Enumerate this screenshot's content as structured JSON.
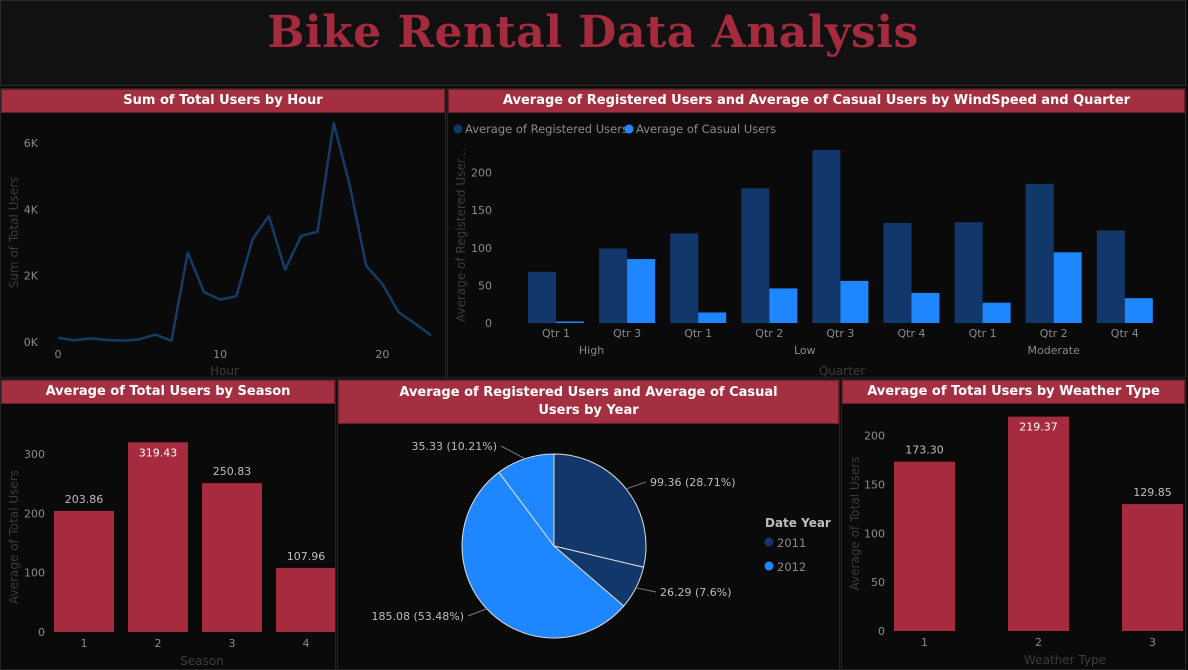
{
  "header": {
    "title": "Bike Rental Data Analysis"
  },
  "colors": {
    "accent": "#a42f40",
    "bar_red": "#a62b3f",
    "dark_blue": "#12386b",
    "light_blue": "#1e86ff",
    "line_blue": "#163b66"
  },
  "chart_data": [
    {
      "id": "hour",
      "type": "line",
      "title": "Sum of Total Users by Hour",
      "xlabel": "Hour",
      "ylabel": "Sum of Total Users",
      "x": [
        0,
        1,
        2,
        3,
        4,
        5,
        6,
        7,
        8,
        9,
        10,
        11,
        12,
        13,
        14,
        15,
        16,
        17,
        18,
        19,
        20,
        21,
        22,
        23
      ],
      "values": [
        130,
        50,
        110,
        60,
        40,
        80,
        220,
        40,
        2700,
        1500,
        1280,
        1380,
        3100,
        3800,
        2180,
        3200,
        3320,
        6600,
        4700,
        2300,
        1750,
        900,
        560,
        200
      ],
      "xticks": [
        "0",
        "10",
        "20"
      ],
      "yticks": [
        "0K",
        "2K",
        "4K",
        "6K"
      ],
      "xlim": [
        0,
        23
      ],
      "ylim": [
        0,
        6600
      ]
    },
    {
      "id": "wind",
      "type": "bar",
      "title": "Average of Registered Users and Average of Casual Users by WindSpeed and Quarter",
      "xlabel": "Quarter",
      "ylabel": "Average of Registered User...",
      "categories": [
        "Qtr 1",
        "Qtr 3",
        "Qtr 1",
        "Qtr 2",
        "Qtr 3",
        "Qtr 4",
        "Qtr 1",
        "Qtr 2",
        "Qtr 4"
      ],
      "groups": [
        {
          "label": "High",
          "span": [
            0,
            1
          ]
        },
        {
          "label": "Low",
          "span": [
            2,
            5
          ]
        },
        {
          "label": "Moderate",
          "span": [
            6,
            8
          ]
        }
      ],
      "series": [
        {
          "name": "Average of Registered Users",
          "values": [
            68,
            99,
            119,
            179,
            230,
            133,
            134,
            185,
            123
          ]
        },
        {
          "name": "Average of Casual Users",
          "values": [
            2,
            85,
            14,
            46,
            56,
            40,
            27,
            94,
            33
          ]
        }
      ],
      "yticks": [
        "0",
        "50",
        "100",
        "150",
        "200"
      ],
      "ylim": [
        0,
        235
      ]
    },
    {
      "id": "season",
      "type": "bar",
      "title": "Average of Total Users by Season",
      "xlabel": "Season",
      "ylabel": "Average of Total Users",
      "categories": [
        "1",
        "2",
        "3",
        "4"
      ],
      "values": [
        203.86,
        319.43,
        250.83,
        107.96
      ],
      "labels": [
        "203.86",
        "319.43",
        "250.83",
        "107.96"
      ],
      "yticks": [
        "0",
        "100",
        "200",
        "300"
      ],
      "ylim": [
        0,
        320
      ]
    },
    {
      "id": "year",
      "type": "pie",
      "title": "Average of Registered Users and Average of Casual Users by Year",
      "legend_title": "Date Year",
      "legend": [
        "2011",
        "2012"
      ],
      "slices": [
        {
          "label": "99.36 (28.71%)",
          "value": 99.36,
          "series": "2011"
        },
        {
          "label": "26.29 (7.6%)",
          "value": 26.29,
          "series": "2011"
        },
        {
          "label": "185.08 (53.48%)",
          "value": 185.08,
          "series": "2012"
        },
        {
          "label": "35.33 (10.21%)",
          "value": 35.33,
          "series": "2012"
        }
      ]
    },
    {
      "id": "weather",
      "type": "bar",
      "title": "Average of Total Users by Weather Type",
      "xlabel": "Weather Type",
      "ylabel": "Average of Total Users",
      "categories": [
        "1",
        "2",
        "3"
      ],
      "values": [
        173.3,
        219.37,
        129.85
      ],
      "labels": [
        "173.30",
        "219.37",
        "129.85"
      ],
      "yticks": [
        "0",
        "50",
        "100",
        "150",
        "200"
      ],
      "ylim": [
        0,
        220
      ]
    }
  ]
}
